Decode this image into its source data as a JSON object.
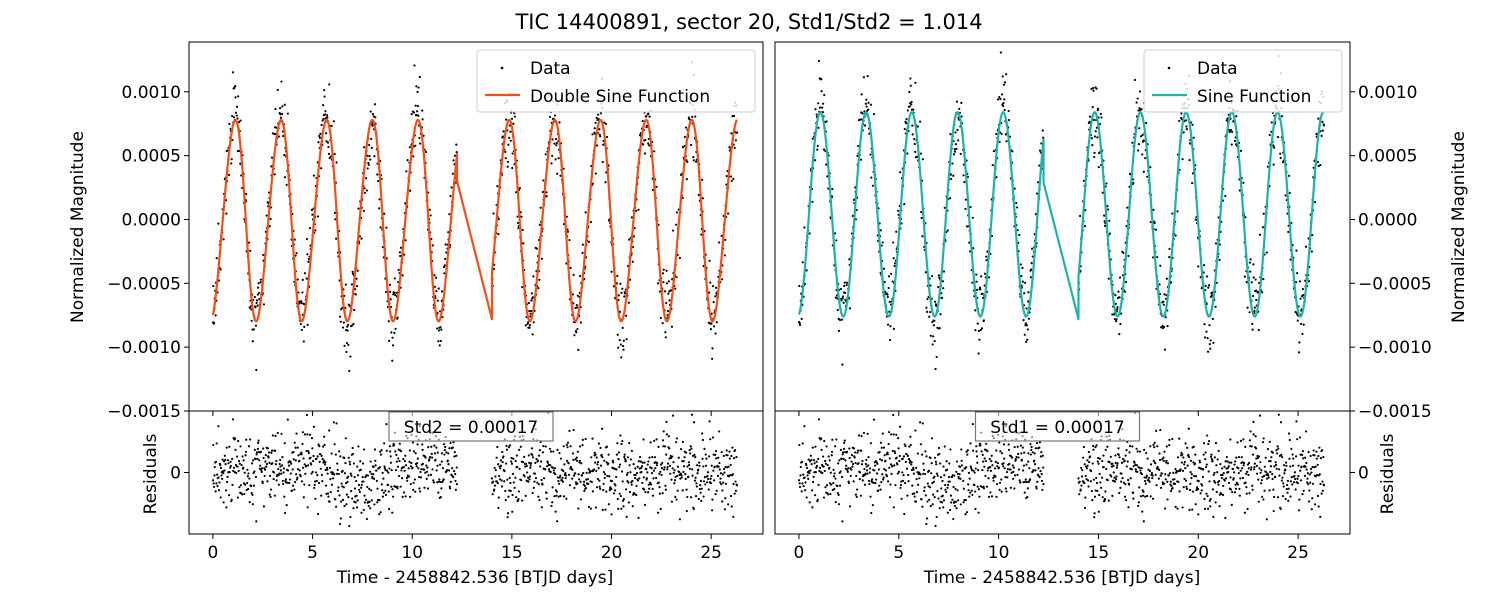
{
  "title": "TIC 14400891, sector 20, Std1/Std2 = 1.014",
  "xlabel": "Time - 2458842.536 [BTJD days]",
  "ylabel": "Normalized Magnitude",
  "residual_label": "Residuals",
  "chart_data": [
    {
      "type": "scatter",
      "panel": "left",
      "x_range": [
        -1.2,
        27.6
      ],
      "y_range": [
        -0.0015,
        0.00139
      ],
      "residual_range": [
        -0.00048,
        0.00048
      ],
      "x_ticks": [
        "0",
        "5",
        "10",
        "15",
        "20",
        "25"
      ],
      "y_ticks": [
        "0.0010",
        "0.0005",
        "0.0000",
        "−0.0005",
        "−0.0010",
        "−0.0015"
      ],
      "residual_ticks": [
        "0"
      ],
      "legend": {
        "placement": "top-right",
        "data_label": "Data",
        "model_label": "Double Sine Function"
      },
      "model_color": "#f0501a",
      "std_text": "Std2 = 0.00017",
      "model": {
        "segments": [
          [
            0.0,
            12.25
          ],
          [
            12.25,
            14.0
          ],
          [
            14.0,
            26.3
          ]
        ],
        "mean": 0.0,
        "amp1": 0.00078,
        "period1": 2.29,
        "phase1": 0.5,
        "amp2": 6e-05,
        "period2": 1.145,
        "phase2": 1.1,
        "gap_start": [
          12.25,
          0.0003
        ],
        "gap_end": [
          14.0,
          -0.00078
        ]
      },
      "data": {
        "time_ranges": [
          [
            0.0,
            12.25
          ],
          [
            14.0,
            26.3
          ]
        ],
        "points_per_day": 52,
        "residual_std": 0.00017,
        "residual_trend": [
          [
            0.0,
            0.0
          ],
          [
            3.0,
            3e-05
          ],
          [
            5.0,
            8e-05
          ],
          [
            7.0,
            -0.0001
          ],
          [
            8.5,
            -2e-05
          ],
          [
            10.0,
            9e-05
          ],
          [
            12.25,
            5e-05
          ],
          [
            14.0,
            -4e-05
          ],
          [
            17.0,
            5e-05
          ],
          [
            20.0,
            -2e-05
          ],
          [
            23.0,
            3e-05
          ],
          [
            26.3,
            -2e-05
          ]
        ]
      }
    },
    {
      "type": "scatter",
      "panel": "right",
      "x_range": [
        -1.2,
        27.6
      ],
      "y_range": [
        -0.0015,
        0.00139
      ],
      "residual_range": [
        -0.00048,
        0.00048
      ],
      "x_ticks": [
        "0",
        "5",
        "10",
        "15",
        "20",
        "25"
      ],
      "y_ticks": [
        "0.0010",
        "0.0005",
        "0.0000",
        "−0.0005",
        "−0.0010",
        "−0.0015"
      ],
      "residual_ticks": [
        "0"
      ],
      "legend": {
        "placement": "top-right",
        "data_label": "Data",
        "model_label": "Sine Function"
      },
      "model_color": "#20b2aa",
      "std_text": "Std1 = 0.00017",
      "model": {
        "segments": [
          [
            0.0,
            12.25
          ],
          [
            12.25,
            14.0
          ],
          [
            14.0,
            26.3
          ]
        ],
        "mean": 4e-05,
        "amp1": 0.0008,
        "period1": 2.29,
        "phase1": 0.5,
        "amp2": 0.0,
        "period2": 1.145,
        "phase2": 0.0,
        "gap_start": [
          12.25,
          0.00029
        ],
        "gap_end": [
          14.0,
          -0.00078
        ]
      },
      "data": {
        "time_ranges": [
          [
            0.0,
            12.25
          ],
          [
            14.0,
            26.3
          ]
        ],
        "points_per_day": 52,
        "residual_std": 0.00017,
        "residual_trend": [
          [
            0.0,
            0.0
          ],
          [
            3.0,
            3e-05
          ],
          [
            5.0,
            8e-05
          ],
          [
            7.0,
            -0.0001
          ],
          [
            8.5,
            -2e-05
          ],
          [
            10.0,
            9e-05
          ],
          [
            12.25,
            5e-05
          ],
          [
            14.0,
            -4e-05
          ],
          [
            17.0,
            5e-05
          ],
          [
            20.0,
            -2e-05
          ],
          [
            23.0,
            3e-05
          ],
          [
            26.3,
            -2e-05
          ]
        ]
      }
    }
  ]
}
